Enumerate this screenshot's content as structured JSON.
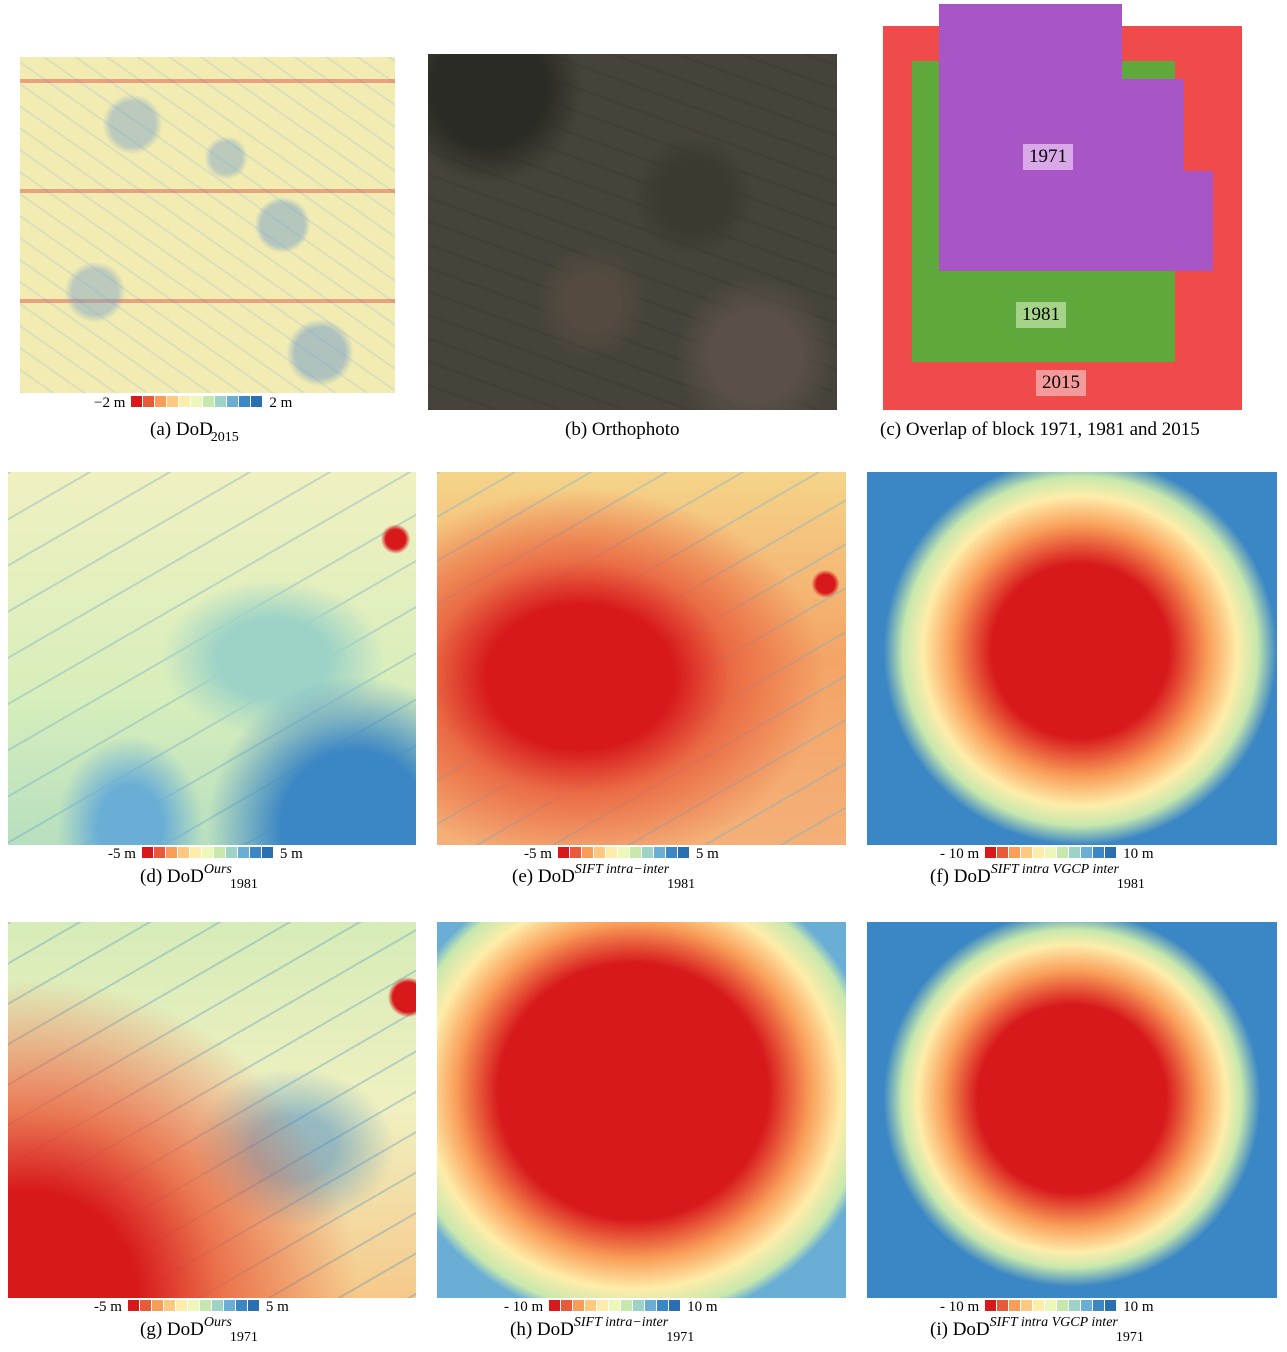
{
  "colors": {
    "ramp": [
      "#d7191c",
      "#e85b3a",
      "#f99e59",
      "#fdc980",
      "#feedaa",
      "#ecf7b9",
      "#c7e8ad",
      "#9dd3c7",
      "#6aaed6",
      "#3b86c4",
      "#2b6fb3"
    ],
    "overlap_1971": "#a855c6",
    "overlap_1981": "#5fa83b",
    "overlap_2015": "#ef4b4b"
  },
  "panels": {
    "a": {
      "caption_prefix": "(a)",
      "caption_main": "DoD",
      "caption_sub": "2015",
      "cbar_min": "−2 m",
      "cbar_max": "2 m"
    },
    "b": {
      "caption": "(b)  Orthophoto"
    },
    "c": {
      "caption": "(c)  Overlap of block 1971, 1981 and 2015",
      "label_1971": "1971",
      "label_1981": "1981",
      "label_2015": "2015"
    },
    "d": {
      "caption_prefix": "(d)",
      "caption_main": "DoD",
      "caption_sup": "Ours",
      "caption_sub": "1981",
      "cbar_min": "-5 m",
      "cbar_max": "5 m"
    },
    "e": {
      "caption_prefix": "(e)",
      "caption_main": "DoD",
      "caption_sup": "SIFT intra−inter",
      "caption_sub": "1981",
      "cbar_min": "-5 m",
      "cbar_max": "5 m"
    },
    "f": {
      "caption_prefix": "(f)",
      "caption_main": "DoD",
      "caption_sup": "SIFT intra VGCP inter",
      "caption_sub": "1981",
      "cbar_min": "- 10 m",
      "cbar_max": "10 m"
    },
    "g": {
      "caption_prefix": "(g)",
      "caption_main": "DoD",
      "caption_sup": "Ours",
      "caption_sub": "1971",
      "cbar_min": "-5 m",
      "cbar_max": "5 m"
    },
    "h": {
      "caption_prefix": "(h)",
      "caption_main": "DoD",
      "caption_sup": "SIFT intra−inter",
      "caption_sub": "1971",
      "cbar_min": "- 10 m",
      "cbar_max": "10 m"
    },
    "i": {
      "caption_prefix": "(i)",
      "caption_main": "DoD",
      "caption_sup": "SIFT intra VGCP inter",
      "caption_sub": "1971",
      "cbar_min": "- 10 m",
      "cbar_max": "10 m"
    }
  }
}
